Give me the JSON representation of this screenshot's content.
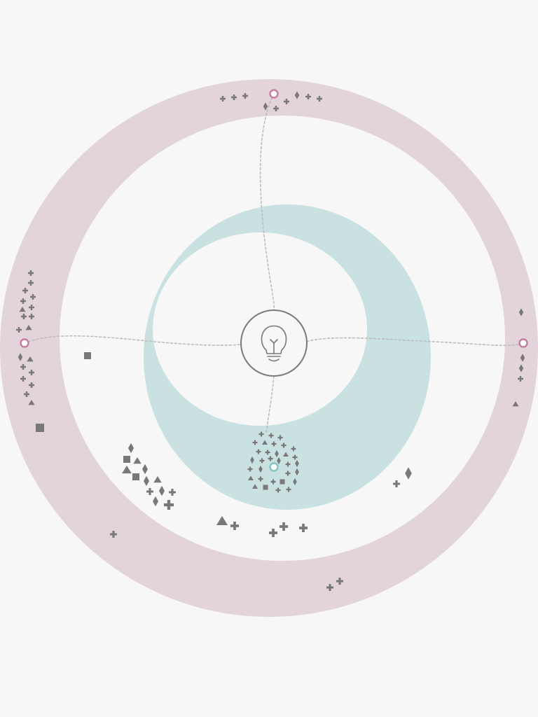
{
  "colors": {
    "background": "#f7f7f7",
    "outer_ring": "#e3d3db",
    "inner_ring": "#c9e1e1",
    "path": "#bdbdbd",
    "marker": "#787878",
    "center_stroke": "#7a7a7a",
    "node_pink": "#c67d9f",
    "node_teal": "#82c4c4",
    "node_fill": "#ffffff"
  },
  "icons": {
    "center": "lightbulb-icon",
    "node": "ring-node-icon",
    "markers": [
      "plus-marker",
      "diamond-marker",
      "triangle-marker",
      "square-marker"
    ]
  }
}
